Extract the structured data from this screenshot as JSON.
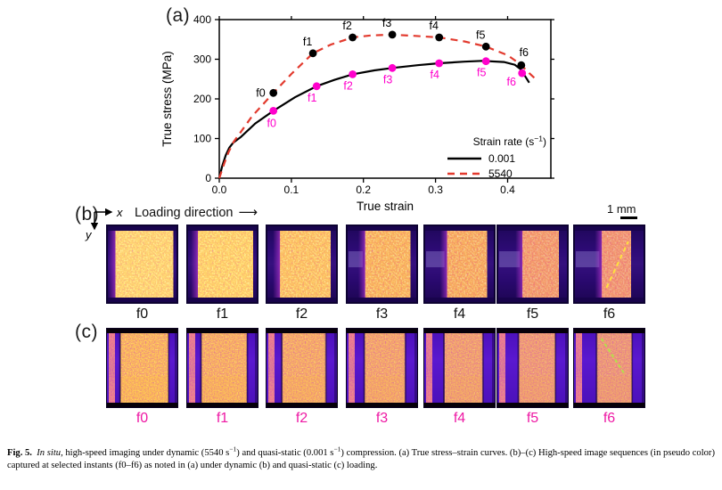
{
  "panel_a": {
    "label": "(a)"
  },
  "chart_data": {
    "type": "line",
    "title": "",
    "xlabel": "True strain",
    "ylabel": "True stress (MPa)",
    "xlim": [
      0,
      0.46
    ],
    "ylim": [
      0,
      400
    ],
    "xticks": [
      "0.0",
      "0.1",
      "0.2",
      "0.3",
      "0.4"
    ],
    "xtick_values": [
      0,
      0.1,
      0.2,
      0.3,
      0.4
    ],
    "yticks": [
      "0",
      "100",
      "200",
      "300",
      "400"
    ],
    "ytick_values": [
      0,
      100,
      200,
      300,
      400
    ],
    "grid": false,
    "legend": {
      "title_pre": "Strain rate (s",
      "title_sup": "−1",
      "title_post": ")",
      "position": "lower-right"
    },
    "series": [
      {
        "name": "0.001",
        "line_style": "solid",
        "line_color": "#000000",
        "marker_color": "#ff00cc",
        "label_color": "#ff00cc",
        "label_side": "below",
        "curve": [
          [
            0,
            0
          ],
          [
            0.004,
            30
          ],
          [
            0.009,
            58
          ],
          [
            0.014,
            77
          ],
          [
            0.019,
            89
          ],
          [
            0.03,
            104
          ],
          [
            0.05,
            138
          ],
          [
            0.075,
            170
          ],
          [
            0.105,
            204
          ],
          [
            0.135,
            232
          ],
          [
            0.16,
            248
          ],
          [
            0.185,
            262
          ],
          [
            0.215,
            272
          ],
          [
            0.24,
            278
          ],
          [
            0.275,
            285
          ],
          [
            0.305,
            290
          ],
          [
            0.34,
            294
          ],
          [
            0.365,
            296
          ],
          [
            0.395,
            293
          ],
          [
            0.41,
            286
          ],
          [
            0.418,
            275
          ],
          [
            0.424,
            258
          ],
          [
            0.43,
            241
          ]
        ],
        "frames": [
          {
            "label": "f0",
            "x": 0.075,
            "y": 170
          },
          {
            "label": "f1",
            "x": 0.135,
            "y": 232
          },
          {
            "label": "f2",
            "x": 0.185,
            "y": 262
          },
          {
            "label": "f3",
            "x": 0.24,
            "y": 278
          },
          {
            "label": "f4",
            "x": 0.305,
            "y": 290
          },
          {
            "label": "f5",
            "x": 0.37,
            "y": 295
          },
          {
            "label": "f6",
            "x": 0.42,
            "y": 265
          }
        ]
      },
      {
        "name": "5540",
        "line_style": "dashed",
        "line_color": "#e23a2e",
        "marker_color": "#000000",
        "label_color": "#000000",
        "label_side": "above",
        "curve": [
          [
            0,
            0
          ],
          [
            0.007,
            38
          ],
          [
            0.013,
            66
          ],
          [
            0.02,
            92
          ],
          [
            0.032,
            122
          ],
          [
            0.045,
            155
          ],
          [
            0.06,
            185
          ],
          [
            0.075,
            215
          ],
          [
            0.1,
            263
          ],
          [
            0.13,
            315
          ],
          [
            0.155,
            337
          ],
          [
            0.185,
            355
          ],
          [
            0.21,
            360
          ],
          [
            0.24,
            362
          ],
          [
            0.27,
            359
          ],
          [
            0.305,
            355
          ],
          [
            0.34,
            345
          ],
          [
            0.37,
            332
          ],
          [
            0.4,
            310
          ],
          [
            0.418,
            287
          ],
          [
            0.43,
            265
          ],
          [
            0.44,
            248
          ]
        ],
        "frames": [
          {
            "label": "f0",
            "x": 0.075,
            "y": 215
          },
          {
            "label": "f1",
            "x": 0.13,
            "y": 315
          },
          {
            "label": "f2",
            "x": 0.185,
            "y": 355
          },
          {
            "label": "f3",
            "x": 0.24,
            "y": 362
          },
          {
            "label": "f4",
            "x": 0.305,
            "y": 355
          },
          {
            "label": "f5",
            "x": 0.37,
            "y": 332
          },
          {
            "label": "f6",
            "x": 0.419,
            "y": 285
          }
        ]
      }
    ]
  },
  "panel_b": {
    "label": "(b)",
    "loading_direction_label": "Loading direction",
    "axis_x_label": "x",
    "axis_y_label": "y",
    "scale_bar_label": "1 mm",
    "label_color": "#111111",
    "frames": [
      {
        "label": "f0",
        "sx": 0.13,
        "sw": 0.8,
        "bright": 0.3,
        "magenta": 0.0,
        "shear_line": false
      },
      {
        "label": "f1",
        "sx": 0.16,
        "sw": 0.76,
        "bright": 0.24,
        "magenta": 0.0,
        "shear_line": false
      },
      {
        "label": "f2",
        "sx": 0.2,
        "sw": 0.7,
        "bright": 0.14,
        "magenta": 0.05,
        "shear_line": false
      },
      {
        "label": "f3",
        "sx": 0.27,
        "sw": 0.62,
        "bright": 0.05,
        "magenta": 0.1,
        "shear_line": false
      },
      {
        "label": "f4",
        "sx": 0.33,
        "sw": 0.55,
        "bright": 0.0,
        "magenta": 0.15,
        "shear_line": false
      },
      {
        "label": "f5",
        "sx": 0.36,
        "sw": 0.5,
        "bright": 0.0,
        "magenta": 0.24,
        "shear_line": false
      },
      {
        "label": "f6",
        "sx": 0.4,
        "sw": 0.4,
        "bright": 0.0,
        "magenta": 0.28,
        "shear_line": true
      }
    ]
  },
  "panel_c": {
    "label": "(c)",
    "label_color": "#ee19a4",
    "frames": [
      {
        "label": "f0",
        "sx": 0.2,
        "sw": 0.66,
        "magenta": 0.0,
        "shear_line": false
      },
      {
        "label": "f1",
        "sx": 0.21,
        "sw": 0.63,
        "magenta": 0.04,
        "shear_line": false
      },
      {
        "label": "f2",
        "sx": 0.23,
        "sw": 0.6,
        "magenta": 0.07,
        "shear_line": false
      },
      {
        "label": "f3",
        "sx": 0.26,
        "sw": 0.56,
        "magenta": 0.1,
        "shear_line": false
      },
      {
        "label": "f4",
        "sx": 0.29,
        "sw": 0.53,
        "magenta": 0.14,
        "shear_line": false
      },
      {
        "label": "f5",
        "sx": 0.31,
        "sw": 0.5,
        "magenta": 0.18,
        "shear_line": false
      },
      {
        "label": "f6",
        "sx": 0.33,
        "sw": 0.48,
        "magenta": 0.2,
        "shear_line": true
      }
    ]
  },
  "caption": {
    "segments": [
      {
        "text": "Fig. 5.",
        "bold": true
      },
      {
        "text": "  "
      },
      {
        "text": "In situ,",
        "italic": true
      },
      {
        "text": " high-speed imaging under dynamic (5540 s"
      },
      {
        "text": "−1",
        "sup": true
      },
      {
        "text": ") and quasi-static (0.001 s"
      },
      {
        "text": "−1",
        "sup": true
      },
      {
        "text": ") compression. (a) True stress–strain curves. (b)–(c) High-speed image sequences (in pseudo color) captured at selected instants (f0–f6) as noted in (a) under dynamic (b) and quasi-static (c) loading."
      }
    ]
  }
}
